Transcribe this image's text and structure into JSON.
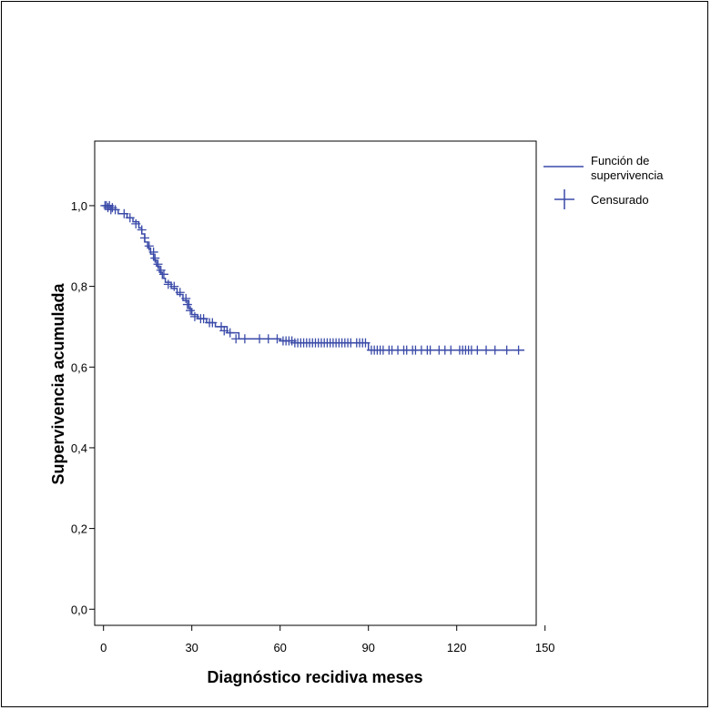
{
  "chart_data": {
    "type": "line",
    "title": "",
    "xlabel": "Diagnóstico recidiva meses",
    "ylabel": "Supervivencia acumulada",
    "xlim": [
      -3,
      147
    ],
    "ylim": [
      -0.04,
      1.16
    ],
    "x_ticks": [
      0,
      30,
      60,
      90,
      120,
      150
    ],
    "x_tick_labels": [
      "0",
      "30",
      "60",
      "90",
      "120",
      "150"
    ],
    "y_ticks": [
      0.0,
      0.2,
      0.4,
      0.6,
      0.8,
      1.0
    ],
    "y_tick_labels": [
      "0,0",
      "0,2",
      "0,4",
      "0,6",
      "0,8",
      "1,0"
    ],
    "grid": false,
    "legend_position": "right",
    "color": "#3a4aa8",
    "series": [
      {
        "name": "Función de supervivencia",
        "type": "step",
        "x": [
          0,
          3,
          5,
          8,
          10,
          12,
          13,
          14,
          15,
          16,
          17,
          18,
          19,
          20,
          21,
          23,
          25,
          27,
          29,
          30,
          32,
          35,
          38,
          42,
          46,
          60,
          65,
          90,
          143
        ],
        "y": [
          1.0,
          0.99,
          0.98,
          0.97,
          0.96,
          0.945,
          0.93,
          0.91,
          0.895,
          0.88,
          0.865,
          0.85,
          0.835,
          0.82,
          0.81,
          0.795,
          0.78,
          0.765,
          0.745,
          0.73,
          0.72,
          0.71,
          0.7,
          0.685,
          0.67,
          0.665,
          0.66,
          0.642,
          0.642
        ]
      },
      {
        "name": "Censurado",
        "type": "censored",
        "x": [
          0.5,
          1,
          1.5,
          2,
          2.5,
          3,
          4,
          7,
          9,
          11,
          13,
          14,
          15.5,
          17,
          17.5,
          18.5,
          19.5,
          20.5,
          22,
          24,
          26,
          28,
          28.5,
          29.5,
          31,
          33,
          34,
          36,
          37,
          40,
          41,
          43,
          45,
          48,
          53,
          56,
          59,
          61,
          62,
          63,
          64,
          65,
          66,
          67,
          68,
          69,
          70,
          71,
          72,
          73,
          74,
          75,
          76,
          77,
          78,
          79,
          80,
          81,
          82,
          83,
          84,
          86,
          87,
          88,
          89,
          91,
          92,
          93,
          94,
          95,
          97,
          98,
          100,
          102,
          103,
          105,
          106,
          108,
          110,
          111,
          114,
          116,
          118,
          121,
          122,
          123,
          124,
          125,
          127,
          130,
          133,
          137,
          141
        ],
        "y": [
          1.0,
          1.0,
          0.995,
          1.0,
          0.99,
          0.995,
          0.99,
          0.98,
          0.97,
          0.955,
          0.94,
          0.92,
          0.9,
          0.885,
          0.87,
          0.855,
          0.84,
          0.83,
          0.805,
          0.8,
          0.785,
          0.77,
          0.755,
          0.74,
          0.725,
          0.72,
          0.72,
          0.71,
          0.71,
          0.7,
          0.69,
          0.685,
          0.67,
          0.67,
          0.67,
          0.67,
          0.67,
          0.665,
          0.665,
          0.665,
          0.665,
          0.66,
          0.66,
          0.66,
          0.66,
          0.66,
          0.66,
          0.66,
          0.66,
          0.66,
          0.66,
          0.66,
          0.66,
          0.66,
          0.66,
          0.66,
          0.66,
          0.66,
          0.66,
          0.66,
          0.66,
          0.66,
          0.66,
          0.66,
          0.66,
          0.642,
          0.642,
          0.642,
          0.642,
          0.642,
          0.642,
          0.642,
          0.642,
          0.642,
          0.642,
          0.642,
          0.642,
          0.642,
          0.642,
          0.642,
          0.642,
          0.642,
          0.642,
          0.642,
          0.642,
          0.642,
          0.642,
          0.642,
          0.642,
          0.642,
          0.642,
          0.642,
          0.642
        ]
      }
    ],
    "legend": [
      {
        "label_lines": [
          "Función de",
          "supervivencia"
        ],
        "icon": "line-icon"
      },
      {
        "label_lines": [
          "Censurado"
        ],
        "icon": "plus-icon"
      }
    ]
  }
}
